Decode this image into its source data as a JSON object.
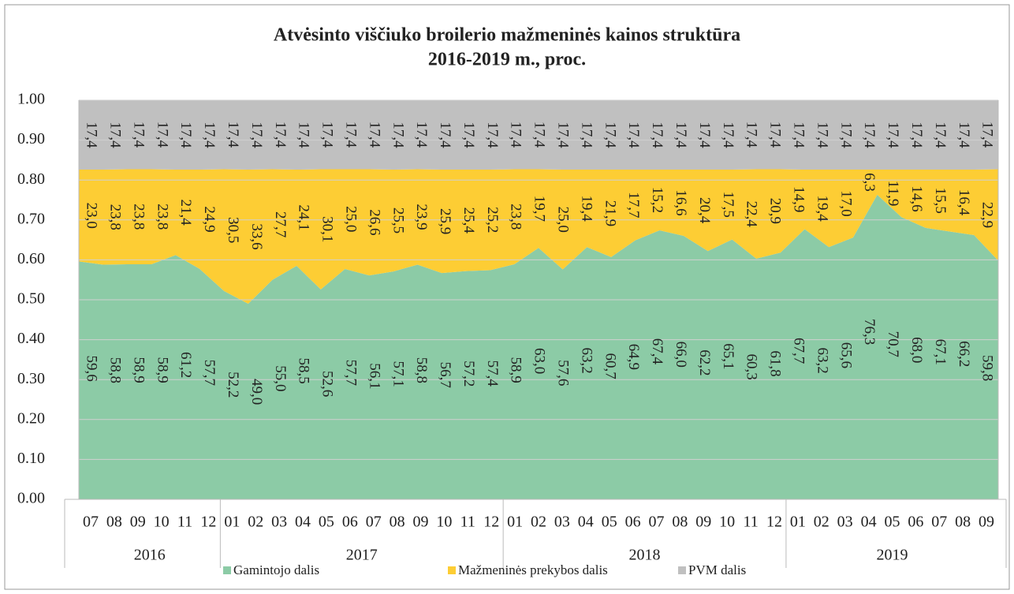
{
  "chart_data": {
    "type": "stacked_area",
    "title": [
      "Atvėsinto viščiuko broilerio mažmeninės kainos struktūra",
      "2016-2019 m., proc."
    ],
    "categories": [
      "07",
      "08",
      "09",
      "10",
      "11",
      "12",
      "01",
      "02",
      "03",
      "04",
      "05",
      "06",
      "07",
      "08",
      "09",
      "10",
      "11",
      "12",
      "01",
      "02",
      "03",
      "04",
      "05",
      "06",
      "07",
      "08",
      "09",
      "10",
      "11",
      "12",
      "01",
      "02",
      "03",
      "04",
      "05",
      "06",
      "07",
      "08",
      "09"
    ],
    "groups": [
      {
        "label": "2016",
        "size": 6
      },
      {
        "label": "2017",
        "size": 12
      },
      {
        "label": "2018",
        "size": 12
      },
      {
        "label": "2019",
        "size": 9
      }
    ],
    "series": [
      {
        "name": "Gamintojo dalis",
        "color": "#8ccba6",
        "values": [
          0.596,
          0.588,
          0.589,
          0.589,
          0.612,
          0.577,
          0.522,
          0.49,
          0.55,
          0.585,
          0.526,
          0.577,
          0.561,
          0.571,
          0.588,
          0.567,
          0.572,
          0.574,
          0.589,
          0.63,
          0.576,
          0.632,
          0.607,
          0.649,
          0.674,
          0.66,
          0.622,
          0.651,
          0.603,
          0.618,
          0.677,
          0.632,
          0.656,
          0.763,
          0.707,
          0.68,
          0.671,
          0.662,
          0.598
        ],
        "value_labels": [
          "59,6",
          "58,8",
          "58,9",
          "58,9",
          "61,2",
          "57,7",
          "52,2",
          "49,0",
          "55,0",
          "58,5",
          "52,6",
          "57,7",
          "56,1",
          "57,1",
          "58,8",
          "56,7",
          "57,2",
          "57,4",
          "58,9",
          "63,0",
          "57,6",
          "63,2",
          "60,7",
          "64,9",
          "67,4",
          "66,0",
          "62,2",
          "65,1",
          "60,3",
          "61,8",
          "67,7",
          "63,2",
          "65,6",
          "76,3",
          "70,7",
          "68,0",
          "67,1",
          "66,2",
          "59,8"
        ]
      },
      {
        "name": "Mažmeninės prekybos dalis",
        "color": "#fdcd34",
        "values": [
          0.23,
          0.238,
          0.238,
          0.238,
          0.214,
          0.249,
          0.305,
          0.336,
          0.277,
          0.241,
          0.301,
          0.25,
          0.266,
          0.255,
          0.239,
          0.259,
          0.254,
          0.252,
          0.238,
          0.197,
          0.25,
          0.194,
          0.219,
          0.177,
          0.152,
          0.166,
          0.204,
          0.175,
          0.224,
          0.209,
          0.149,
          0.194,
          0.17,
          0.063,
          0.119,
          0.146,
          0.155,
          0.164,
          0.229
        ],
        "value_labels": [
          "23,0",
          "23,8",
          "23,8",
          "23,8",
          "21,4",
          "24,9",
          "30,5",
          "33,6",
          "27,7",
          "24,1",
          "30,1",
          "25,0",
          "26,6",
          "25,5",
          "23,9",
          "25,9",
          "25,4",
          "25,2",
          "23,8",
          "19,7",
          "25,0",
          "19,4",
          "21,9",
          "17,7",
          "15,2",
          "16,6",
          "20,4",
          "17,5",
          "22,4",
          "20,9",
          "14,9",
          "19,4",
          "17,0",
          "6,3",
          "11,9",
          "14,6",
          "15,5",
          "16,4",
          "22,9"
        ]
      },
      {
        "name": "PVM dalis",
        "color": "#c0c0c0",
        "values": [
          0.174,
          0.174,
          0.174,
          0.174,
          0.174,
          0.174,
          0.174,
          0.174,
          0.174,
          0.174,
          0.174,
          0.174,
          0.174,
          0.174,
          0.174,
          0.174,
          0.174,
          0.174,
          0.174,
          0.174,
          0.174,
          0.174,
          0.174,
          0.174,
          0.174,
          0.174,
          0.174,
          0.174,
          0.174,
          0.174,
          0.174,
          0.174,
          0.174,
          0.174,
          0.174,
          0.174,
          0.174,
          0.174,
          0.174
        ],
        "value_labels": [
          "17,4",
          "17,4",
          "17,4",
          "17,4",
          "17,4",
          "17,4",
          "17,4",
          "17,4",
          "17,4",
          "17,4",
          "17,4",
          "17,4",
          "17,4",
          "17,4",
          "17,4",
          "17,4",
          "17,4",
          "17,4",
          "17,4",
          "17,4",
          "17,4",
          "17,4",
          "17,4",
          "17,4",
          "17,4",
          "17,4",
          "17,4",
          "17,4",
          "17,4",
          "17,4",
          "17,4",
          "17,4",
          "17,4",
          "17,4",
          "17,4",
          "17,4",
          "17,4",
          "17,4",
          "17,4"
        ]
      }
    ],
    "ylim": [
      0,
      1
    ],
    "yticks": [
      {
        "value": 0,
        "label": "0.00"
      },
      {
        "value": 0.1,
        "label": "0.10"
      },
      {
        "value": 0.2,
        "label": "0.20"
      },
      {
        "value": 0.3,
        "label": "0.30"
      },
      {
        "value": 0.4,
        "label": "0.40"
      },
      {
        "value": 0.5,
        "label": "0.50"
      },
      {
        "value": 0.6,
        "label": "0.60"
      },
      {
        "value": 0.7,
        "label": "0.70"
      },
      {
        "value": 0.8,
        "label": "0.80"
      },
      {
        "value": 0.9,
        "label": "0.90"
      },
      {
        "value": 1,
        "label": "1.00"
      }
    ],
    "grid": true,
    "legend": "bottom"
  }
}
